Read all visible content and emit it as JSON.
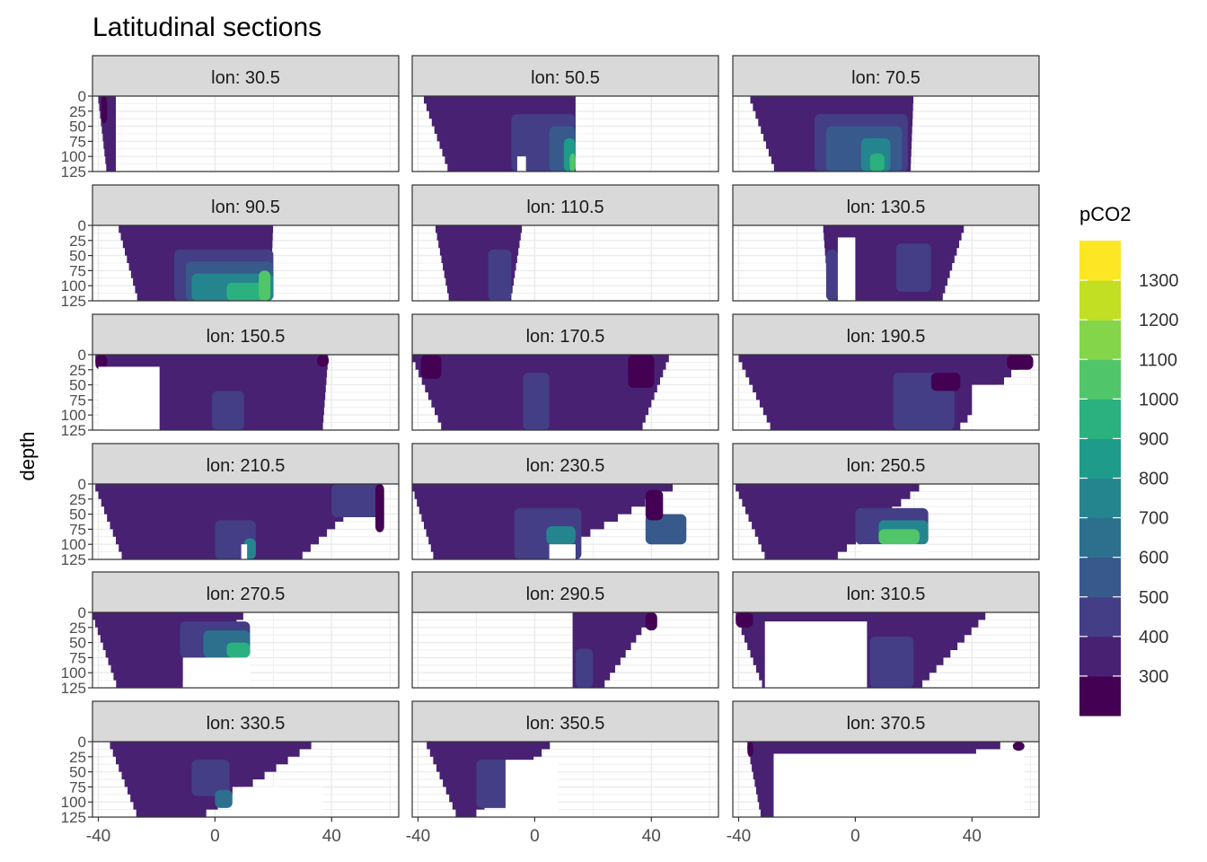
{
  "chart_data": {
    "type": "heatmap",
    "title": "Latitudinal sections",
    "xlabel": "",
    "ylabel": "depth",
    "xlim": [
      -42,
      63
    ],
    "ylim": [
      125,
      0
    ],
    "x_ticks": [
      -40,
      0,
      40
    ],
    "x_tick_labels": [
      "-40",
      "0",
      "40"
    ],
    "y_ticks": [
      0,
      25,
      50,
      75,
      100,
      125
    ],
    "y_tick_labels": [
      "0",
      "25",
      "50",
      "75",
      "100",
      "125"
    ],
    "grid": true,
    "legend": {
      "title": "pCO2",
      "position": "right",
      "levels": [
        {
          "label": "300",
          "color": "#440154"
        },
        {
          "label": "400",
          "color": "#482173"
        },
        {
          "label": "500",
          "color": "#433E85"
        },
        {
          "label": "600",
          "color": "#38598C"
        },
        {
          "label": "700",
          "color": "#2D708E"
        },
        {
          "label": "800",
          "color": "#25858E"
        },
        {
          "label": "900",
          "color": "#1E9B8A"
        },
        {
          "label": "1000",
          "color": "#2BB07F"
        },
        {
          "label": "1100",
          "color": "#51C56A"
        },
        {
          "label": "1200",
          "color": "#85D54A"
        },
        {
          "label": "1300",
          "color": "#C2DF23"
        },
        {
          "label": "",
          "color": "#FDE725"
        }
      ]
    },
    "panels": [
      {
        "label": "lon: 30.5",
        "top": [
          -40,
          -34
        ],
        "bottom": [
          -37,
          -34
        ],
        "features": [
          {
            "x": [
              -39,
              -37
            ],
            "y": [
              0,
              45
            ],
            "level": 0
          }
        ]
      },
      {
        "label": "lon: 50.5",
        "top": [
          -38,
          14
        ],
        "bottom": [
          -29,
          14
        ],
        "features": [
          {
            "x": [
              -8,
              14
            ],
            "y": [
              30,
              125
            ],
            "level": 2
          },
          {
            "x": [
              5,
              14
            ],
            "y": [
              50,
              125
            ],
            "level": 3
          },
          {
            "x": [
              10,
              14
            ],
            "y": [
              70,
              125
            ],
            "level": 6
          },
          {
            "x": [
              12,
              14
            ],
            "y": [
              95,
              125
            ],
            "level": 8
          }
        ],
        "gaps": [
          {
            "x": [
              -6,
              -3
            ],
            "y": [
              100,
              125
            ]
          }
        ]
      },
      {
        "label": "lon: 70.5",
        "top": [
          -36,
          20
        ],
        "bottom": [
          -27,
          19
        ],
        "features": [
          {
            "x": [
              -14,
              18
            ],
            "y": [
              30,
              125
            ],
            "level": 2
          },
          {
            "x": [
              -10,
              16
            ],
            "y": [
              50,
              125
            ],
            "level": 3
          },
          {
            "x": [
              2,
              12
            ],
            "y": [
              70,
              125
            ],
            "level": 5
          },
          {
            "x": [
              5,
              10
            ],
            "y": [
              95,
              125
            ],
            "level": 7
          }
        ]
      },
      {
        "label": "lon: 90.5",
        "top": [
          -33,
          20
        ],
        "bottom": [
          -26,
          19
        ],
        "features": [
          {
            "x": [
              -14,
              20
            ],
            "y": [
              40,
              125
            ],
            "level": 2
          },
          {
            "x": [
              -10,
              20
            ],
            "y": [
              60,
              125
            ],
            "level": 3
          },
          {
            "x": [
              -8,
              20
            ],
            "y": [
              80,
              125
            ],
            "level": 5
          },
          {
            "x": [
              4,
              19
            ],
            "y": [
              95,
              125
            ],
            "level": 7
          },
          {
            "x": [
              15,
              19
            ],
            "y": [
              75,
              125
            ],
            "level": 8
          }
        ]
      },
      {
        "label": "lon: 110.5",
        "top": [
          -34,
          -4
        ],
        "bottom": [
          -29,
          -8
        ],
        "features": [
          {
            "x": [
              -16,
              -8
            ],
            "y": [
              40,
              125
            ],
            "level": 2
          }
        ]
      },
      {
        "label": "lon: 130.5",
        "top": [
          -11,
          38
        ],
        "bottom": [
          -9,
          30
        ],
        "features": [
          {
            "x": [
              -10,
              -6
            ],
            "y": [
              40,
              125
            ],
            "level": 2
          },
          {
            "x": [
              14,
              26
            ],
            "y": [
              30,
              110
            ],
            "level": 2
          }
        ],
        "gaps": [
          {
            "x": [
              -6,
              0
            ],
            "y": [
              20,
              125
            ]
          }
        ]
      },
      {
        "label": "lon: 150.5",
        "top": [
          -41,
          39
        ],
        "bottom": [
          -19,
          37
        ],
        "features": [
          {
            "x": [
              -1,
              10
            ],
            "y": [
              60,
              125
            ],
            "level": 2
          },
          {
            "x": [
              -41,
              -37
            ],
            "y": [
              0,
              25
            ],
            "level": 0
          },
          {
            "x": [
              35,
              39
            ],
            "y": [
              0,
              20
            ],
            "level": 0
          }
        ],
        "gaps": [
          {
            "x": [
              -40,
              -19
            ],
            "y": [
              20,
              125
            ]
          }
        ]
      },
      {
        "label": "lon: 170.5",
        "top": [
          -42,
          47
        ],
        "bottom": [
          -31,
          37
        ],
        "features": [
          {
            "x": [
              -39,
              -32
            ],
            "y": [
              0,
              40
            ],
            "level": 0
          },
          {
            "x": [
              -4,
              5
            ],
            "y": [
              30,
              125
            ],
            "level": 2
          },
          {
            "x": [
              32,
              41
            ],
            "y": [
              0,
              55
            ],
            "level": 0
          }
        ]
      },
      {
        "label": "lon: 190.5",
        "top": [
          -40,
          61
        ],
        "bottom": [
          -28,
          36
        ],
        "features": [
          {
            "x": [
              13,
              34
            ],
            "y": [
              30,
              125
            ],
            "level": 2
          },
          {
            "x": [
              26,
              36
            ],
            "y": [
              30,
              60
            ],
            "level": 0
          },
          {
            "x": [
              52,
              61
            ],
            "y": [
              0,
              25
            ],
            "level": 0
          }
        ],
        "gaps": [
          {
            "x": [
              40,
              61
            ],
            "y": [
              50,
              125
            ]
          }
        ]
      },
      {
        "label": "lon: 210.5",
        "top": [
          -41,
          58
        ],
        "bottom": [
          -31,
          30
        ],
        "features": [
          {
            "x": [
              0,
              14
            ],
            "y": [
              60,
              125
            ],
            "level": 2
          },
          {
            "x": [
              10,
              14
            ],
            "y": [
              90,
              125
            ],
            "level": 5
          },
          {
            "x": [
              40,
              57
            ],
            "y": [
              0,
              55
            ],
            "level": 2
          },
          {
            "x": [
              55,
              58
            ],
            "y": [
              0,
              80
            ],
            "level": 0
          }
        ],
        "gaps": [
          {
            "x": [
              9,
              11
            ],
            "y": [
              100,
              125
            ]
          }
        ]
      },
      {
        "label": "lon: 230.5",
        "top": [
          -42,
          52
        ],
        "bottom": [
          -34,
          5
        ],
        "features": [
          {
            "x": [
              -7,
              16
            ],
            "y": [
              40,
              125
            ],
            "level": 2
          },
          {
            "x": [
              4,
              14
            ],
            "y": [
              70,
              100
            ],
            "level": 5
          },
          {
            "x": [
              38,
              52
            ],
            "y": [
              50,
              100
            ],
            "level": 3
          },
          {
            "x": [
              38,
              44
            ],
            "y": [
              10,
              60
            ],
            "level": 0
          }
        ],
        "gaps": [
          {
            "x": [
              5,
              14
            ],
            "y": [
              100,
              125
            ]
          }
        ]
      },
      {
        "label": "lon: 250.5",
        "top": [
          -41,
          25
        ],
        "bottom": [
          -30,
          -6
        ],
        "features": [
          {
            "x": [
              0,
              25
            ],
            "y": [
              40,
              100
            ],
            "level": 2
          },
          {
            "x": [
              8,
              25
            ],
            "y": [
              60,
              100
            ],
            "level": 5
          },
          {
            "x": [
              8,
              22
            ],
            "y": [
              75,
              100
            ],
            "level": 8
          }
        ],
        "gaps": [
          {
            "x": [
              2,
              25
            ],
            "y": [
              100,
              125
            ]
          }
        ]
      },
      {
        "label": "lon: 270.5",
        "top": [
          -42,
          12
        ],
        "bottom": [
          -33,
          -11
        ],
        "features": [
          {
            "x": [
              -12,
              12
            ],
            "y": [
              15,
              75
            ],
            "level": 2
          },
          {
            "x": [
              -4,
              12
            ],
            "y": [
              30,
              75
            ],
            "level": 4
          },
          {
            "x": [
              4,
              12
            ],
            "y": [
              50,
              75
            ],
            "level": 7
          }
        ],
        "gaps": [
          {
            "x": [
              -11,
              12
            ],
            "y": [
              75,
              125
            ]
          }
        ]
      },
      {
        "label": "lon: 290.5",
        "top": [
          13,
          42
        ],
        "bottom": [
          13,
          24
        ],
        "features": [
          {
            "x": [
              14,
              20
            ],
            "y": [
              60,
              125
            ],
            "level": 2
          },
          {
            "x": [
              38,
              42
            ],
            "y": [
              0,
              30
            ],
            "level": 0
          }
        ]
      },
      {
        "label": "lon: 310.5",
        "top": [
          -41,
          47
        ],
        "bottom": [
          -31,
          23
        ],
        "features": [
          {
            "x": [
              -41,
              -35
            ],
            "y": [
              0,
              25
            ],
            "level": 0
          },
          {
            "x": [
              5,
              20
            ],
            "y": [
              40,
              125
            ],
            "level": 2
          }
        ],
        "gaps": [
          {
            "x": [
              -31,
              4
            ],
            "y": [
              15,
              125
            ]
          }
        ]
      },
      {
        "label": "lon: 330.5",
        "top": [
          -36,
          37
        ],
        "bottom": [
          -26,
          -3
        ],
        "features": [
          {
            "x": [
              -8,
              5
            ],
            "y": [
              30,
              90
            ],
            "level": 2
          },
          {
            "x": [
              0,
              6
            ],
            "y": [
              80,
              110
            ],
            "level": 4
          }
        ],
        "gaps": [
          {
            "x": [
              6,
              37
            ],
            "y": [
              75,
              125
            ]
          }
        ]
      },
      {
        "label": "lon: 350.5",
        "top": [
          -37,
          8
        ],
        "bottom": [
          -26,
          -20
        ],
        "features": [
          {
            "x": [
              -20,
              -8
            ],
            "y": [
              30,
              110
            ],
            "level": 2
          }
        ],
        "gaps": [
          {
            "x": [
              -10,
              8
            ],
            "y": [
              30,
              125
            ]
          }
        ]
      },
      {
        "label": "lon: 370.5",
        "top": [
          -37,
          58
        ],
        "bottom": [
          -32,
          -25
        ],
        "features": [
          {
            "x": [
              -37,
              -35
            ],
            "y": [
              0,
              25
            ],
            "level": 0
          },
          {
            "x": [
              54,
              58
            ],
            "y": [
              0,
              15
            ],
            "level": 0
          },
          {
            "x": [
              -7,
              -4
            ],
            "y": [
              40,
              55
            ],
            "level": 2
          }
        ],
        "gaps": [
          {
            "x": [
              -28,
              58
            ],
            "y": [
              20,
              125
            ]
          }
        ]
      }
    ]
  }
}
